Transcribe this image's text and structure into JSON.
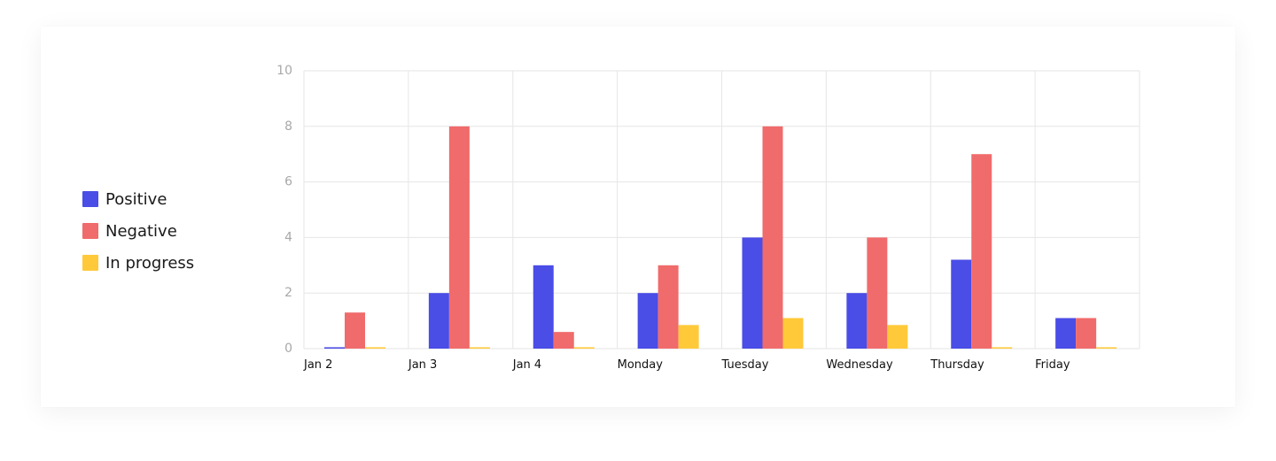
{
  "colors": {
    "positive": "#4a4de6",
    "negative": "#f06b6b",
    "in_progress": "#ffc93a",
    "grid": "#e6e6e6"
  },
  "chart_data": {
    "type": "bar",
    "categories": [
      "Jan 2",
      "Jan 3",
      "Jan 4",
      "Monday",
      "Tuesday",
      "Wednesday",
      "Thursday",
      "Friday"
    ],
    "series": [
      {
        "name": "Positive",
        "values": [
          0.05,
          2,
          3,
          2,
          4,
          2,
          3.2,
          1.1
        ]
      },
      {
        "name": "Negative",
        "values": [
          1.3,
          8,
          0.6,
          3,
          8,
          4,
          7,
          1.1
        ]
      },
      {
        "name": "In progress",
        "values": [
          0.05,
          0.05,
          0.05,
          0.85,
          1.1,
          0.85,
          0.05,
          0.05
        ]
      }
    ],
    "ylim": [
      0,
      10
    ],
    "yticks": [
      "0",
      "2",
      "4",
      "6",
      "8",
      "10"
    ],
    "grid": true,
    "legend_position": "left"
  }
}
